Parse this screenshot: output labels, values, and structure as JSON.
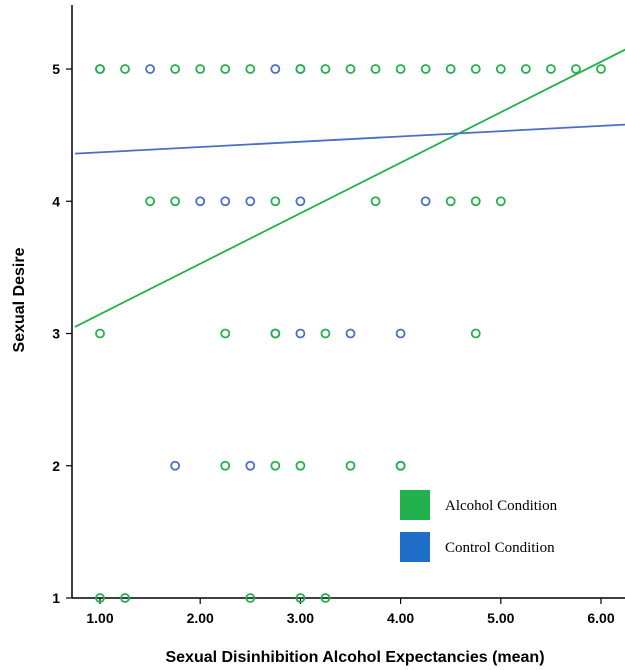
{
  "chart_data": {
    "type": "scatter",
    "xlabel": "Sexual Disinhibition Alcohol Expectancies (mean)",
    "ylabel": "Sexual Desire",
    "xlim": [
      0.75,
      6.25
    ],
    "ylim": [
      1,
      5.5
    ],
    "x_ticks": [
      "1.00",
      "2.00",
      "3.00",
      "4.00",
      "5.00",
      "6.00"
    ],
    "y_ticks": [
      "1",
      "2",
      "3",
      "4",
      "5"
    ],
    "legend_position": "bottom-right",
    "series": [
      {
        "name": "Alcohol Condition",
        "color": "#22b14c",
        "points": [
          [
            1.0,
            5
          ],
          [
            1.25,
            5
          ],
          [
            1.75,
            5
          ],
          [
            2.0,
            5
          ],
          [
            2.25,
            5
          ],
          [
            2.5,
            5
          ],
          [
            3.0,
            5
          ],
          [
            3.25,
            5
          ],
          [
            3.5,
            5
          ],
          [
            3.75,
            5
          ],
          [
            4.0,
            5
          ],
          [
            4.25,
            5
          ],
          [
            4.5,
            5
          ],
          [
            4.75,
            5
          ],
          [
            5.0,
            5
          ],
          [
            5.25,
            5
          ],
          [
            5.5,
            5
          ],
          [
            5.75,
            5
          ],
          [
            6.0,
            5
          ],
          [
            1.5,
            4
          ],
          [
            1.75,
            4
          ],
          [
            2.75,
            4
          ],
          [
            3.75,
            4
          ],
          [
            4.5,
            4
          ],
          [
            4.75,
            4
          ],
          [
            5.0,
            4
          ],
          [
            1.0,
            3
          ],
          [
            2.25,
            3
          ],
          [
            2.75,
            3
          ],
          [
            3.25,
            3
          ],
          [
            4.75,
            3
          ],
          [
            2.25,
            2
          ],
          [
            2.75,
            2
          ],
          [
            3.0,
            2
          ],
          [
            3.5,
            2
          ],
          [
            4.0,
            2
          ],
          [
            1.0,
            1
          ],
          [
            1.25,
            1
          ],
          [
            2.5,
            1
          ],
          [
            3.0,
            1
          ],
          [
            3.25,
            1
          ]
        ],
        "fit_line": {
          "x": [
            0.75,
            6.25
          ],
          "y": [
            3.05,
            5.15
          ]
        }
      },
      {
        "name": "Control Condition",
        "color": "#4a6fc4",
        "points": [
          [
            1.0,
            5
          ],
          [
            1.5,
            5
          ],
          [
            2.75,
            5
          ],
          [
            3.0,
            5
          ],
          [
            2.0,
            4
          ],
          [
            2.25,
            4
          ],
          [
            2.5,
            4
          ],
          [
            3.0,
            4
          ],
          [
            4.25,
            4
          ],
          [
            2.75,
            3
          ],
          [
            3.0,
            3
          ],
          [
            3.5,
            3
          ],
          [
            4.0,
            3
          ],
          [
            1.75,
            2
          ],
          [
            2.5,
            2
          ],
          [
            4.0,
            2
          ]
        ],
        "fit_line": {
          "x": [
            0.75,
            6.25
          ],
          "y": [
            4.36,
            4.58
          ]
        }
      }
    ],
    "legend_colors": {
      "alcohol": "#22b14c",
      "control": "#1f6fc9"
    }
  }
}
